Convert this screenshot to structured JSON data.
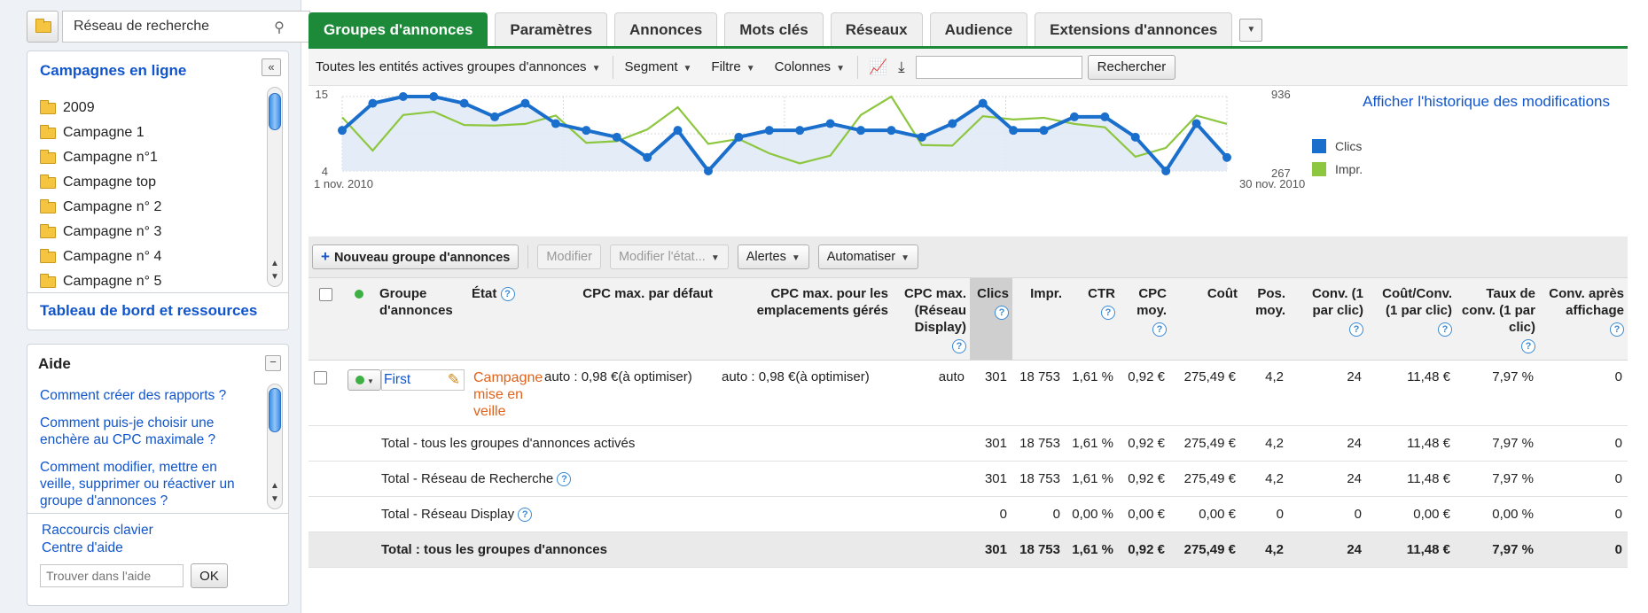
{
  "sidebar": {
    "network_search": "Réseau de recherche",
    "campaigns_title": "Campagnes en ligne",
    "collapse_label": "«",
    "tree": [
      "2009",
      "Campagne 1",
      "Campagne n°1",
      "Campagne top",
      "Campagne n° 2",
      "Campagne n° 3",
      "Campagne n° 4",
      "Campagne n° 5"
    ],
    "dashboard_link": "Tableau de bord et ressources",
    "help": {
      "title": "Aide",
      "questions": [
        "Comment créer des rapports ?",
        "Comment puis-je choisir une enchère au CPC maximale ?",
        "Comment modifier, mettre en veille, supprimer ou réactiver un groupe d'annonces ?"
      ],
      "links": [
        "Raccourcis clavier",
        "Centre d'aide"
      ],
      "search_placeholder": "Trouver dans l'aide",
      "ok_label": "OK"
    }
  },
  "tabs": [
    "Groupes d'annonces",
    "Paramètres",
    "Annonces",
    "Mots clés",
    "Réseaux",
    "Audience",
    "Extensions d'annonces"
  ],
  "toolbar": {
    "filter_scope": "Toutes les entités actives groupes d'annonces",
    "segment": "Segment",
    "filter": "Filtre",
    "columns": "Colonnes",
    "search_value": "",
    "search_button": "Rechercher"
  },
  "chart": {
    "history_link": "Afficher l'historique des modifications",
    "left_min_label": "4",
    "left_max_label": "15",
    "right_min_label": "267",
    "right_max_label": "936",
    "x_start_label": "1 nov. 2010",
    "x_end_label": "30 nov. 2010"
  },
  "chart_data": {
    "type": "line",
    "x_range": [
      "1 nov. 2010",
      "30 nov. 2010"
    ],
    "series": [
      {
        "name": "Clics",
        "color": "#1a6fcc",
        "axis": "left",
        "ylim": [
          4,
          15
        ],
        "values": [
          10,
          14,
          15,
          15,
          14,
          12,
          14,
          11,
          10,
          9,
          6,
          10,
          4,
          9,
          10,
          10,
          11,
          10,
          10,
          9,
          11,
          14,
          10,
          10,
          12,
          12,
          9,
          4,
          11,
          6
        ]
      },
      {
        "name": "Impr.",
        "color": "#8dc63f",
        "axis": "right",
        "ylim": [
          267,
          936
        ],
        "values": [
          750,
          450,
          770,
          800,
          680,
          675,
          690,
          765,
          520,
          535,
          640,
          840,
          510,
          555,
          425,
          335,
          405,
          770,
          936,
          500,
          495,
          760,
          730,
          745,
          690,
          660,
          395,
          475,
          765,
          690
        ]
      }
    ],
    "grid": true,
    "legend_position": "right"
  },
  "actions": {
    "new_group": "Nouveau groupe d'annonces",
    "edit": "Modifier",
    "edit_state": "Modifier l'état...",
    "alerts": "Alertes",
    "automate": "Automatiser"
  },
  "table": {
    "headers": {
      "group": "Groupe d'annonces",
      "state": "État",
      "cpc_default": "CPC max. par défaut",
      "cpc_managed": "CPC max. pour les emplacements gérés",
      "cpc_display": "CPC max. (Réseau Display)",
      "clicks": "Clics",
      "impr": "Impr.",
      "ctr": "CTR",
      "cpc_avg": "CPC moy.",
      "cost": "Coût",
      "pos": "Pos. moy.",
      "conv": "Conv. (1 par clic)",
      "cost_conv": "Coût/Conv. (1 par clic)",
      "conv_rate": "Taux de conv. (1 par clic)",
      "view_conv": "Conv. après affichage"
    },
    "row": {
      "name": "First",
      "state": "Campagne mise en veille",
      "cpc_default": "auto : 0,98 €(à optimiser)",
      "cpc_managed": "auto : 0,98 €(à optimiser)",
      "cpc_display": "auto",
      "clicks": "301",
      "impr": "18 753",
      "ctr": "1,61 %",
      "cpc_avg": "0,92 €",
      "cost": "275,49 €",
      "pos": "4,2",
      "conv": "24",
      "cost_conv": "11,48 €",
      "conv_rate": "7,97 %",
      "view_conv": "0"
    },
    "totals": [
      {
        "label": "Total - tous les groupes d'annonces activés",
        "help": false,
        "clicks": "301",
        "impr": "18 753",
        "ctr": "1,61 %",
        "cpc_avg": "0,92 €",
        "cost": "275,49 €",
        "pos": "4,2",
        "conv": "24",
        "cost_conv": "11,48 €",
        "conv_rate": "7,97 %",
        "view_conv": "0"
      },
      {
        "label": "Total - Réseau de Recherche",
        "help": true,
        "clicks": "301",
        "impr": "18 753",
        "ctr": "1,61 %",
        "cpc_avg": "0,92 €",
        "cost": "275,49 €",
        "pos": "4,2",
        "conv": "24",
        "cost_conv": "11,48 €",
        "conv_rate": "7,97 %",
        "view_conv": "0"
      },
      {
        "label": "Total - Réseau Display",
        "help": true,
        "clicks": "0",
        "impr": "0",
        "ctr": "0,00 %",
        "cpc_avg": "0,00 €",
        "cost": "0,00 €",
        "pos": "0",
        "conv": "0",
        "cost_conv": "0,00 €",
        "conv_rate": "0,00 %",
        "view_conv": "0"
      },
      {
        "label": "Total : tous les groupes d'annonces",
        "help": false,
        "clicks": "301",
        "impr": "18 753",
        "ctr": "1,61 %",
        "cpc_avg": "0,92 €",
        "cost": "275,49 €",
        "pos": "4,2",
        "conv": "24",
        "cost_conv": "11,48 €",
        "conv_rate": "7,97 %",
        "view_conv": "0"
      }
    ]
  }
}
